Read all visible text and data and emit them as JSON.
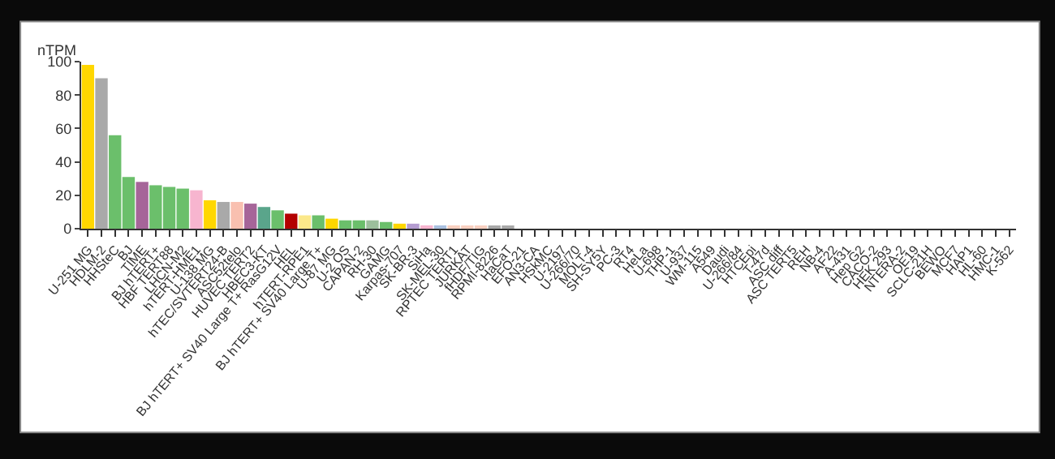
{
  "chart_data": {
    "type": "bar",
    "ylabel": "nTPM",
    "categories": [
      "U-251 MG",
      "HDLM-2",
      "HHSteC",
      "BJ",
      "TIME",
      "BJ hTERT+",
      "HBF TERT88",
      "LHCN-M2",
      "hTERT-HME1",
      "U-138 MG",
      "hTEC/SVTERT24-B",
      "ASC52telo",
      "HUVEC TERT2",
      "HBEC3-KT",
      "BJ hTERT+ SV40 Large T+ RasG12V",
      "HEL",
      "hTERT-RPE1",
      "BJ hTERT+ SV40 Large T+",
      "U-87 MG",
      "U-2 OS",
      "CAPAN-2",
      "RH-30",
      "GAMG",
      "Karpas-707",
      "SK-BR-3",
      "SiHa",
      "SK-MEL-30",
      "RPTEC TERT1",
      "JURKAT",
      "fHDF/TIG",
      "RPMI-8226",
      "HaCaT",
      "EFO-21",
      "AN3-CA",
      "HSkMC",
      "U-2197",
      "U-266/70",
      "MOLT-4",
      "SH-SY5Y",
      "PC-3",
      "RT4",
      "HeLa",
      "U-698",
      "THP-1",
      "U-937",
      "WM-115",
      "A549",
      "Daudi",
      "U-266/84",
      "HTCEpi",
      "T-47d",
      "ASC diff",
      "ASC TERT5",
      "REH",
      "NB-4",
      "AF22",
      "A-431",
      "Hep G2",
      "CACO-2",
      "HEK 293",
      "NTERA-2",
      "OE19",
      "SCLC-21H",
      "BEWO",
      "MCF7",
      "HAP1",
      "HL-60",
      "HMC-1",
      "K-562"
    ],
    "values": [
      98,
      90,
      56,
      31,
      28,
      26,
      25,
      24,
      23,
      17,
      16,
      16,
      15,
      13,
      11,
      9,
      8,
      8,
      6,
      5,
      5,
      5,
      4,
      3,
      3,
      2,
      2,
      2,
      1,
      1,
      1,
      1,
      0,
      0,
      0,
      0,
      0,
      0,
      0,
      0,
      0,
      0,
      0,
      0,
      0,
      0,
      0,
      0,
      0,
      0,
      0,
      0,
      0,
      0,
      0,
      0,
      0,
      0,
      0,
      0,
      0,
      0,
      0,
      0,
      0,
      0,
      0,
      0,
      0
    ],
    "colors": [
      "#ffd700",
      "#a9a9a9",
      "#6bbf6b",
      "#6bbf6b",
      "#a66599",
      "#6bbf6b",
      "#6bbf6b",
      "#6bbf6b",
      "#f7b5cf",
      "#ffd700",
      "#a9a9a9",
      "#f9c0b0",
      "#a66599",
      "#5aa58b",
      "#6bbf6b",
      "#b30000",
      "#fbe88a",
      "#6bbf6b",
      "#ffd700",
      "#6bbf6b",
      "#6bbf6b",
      "#9cbf9c",
      "#6bbf6b",
      "#ffd700",
      "#b49cd0",
      "#f7b5cf",
      "#a9c0e0",
      "#f9d0c0",
      "#f9d0c0",
      "#f9d0c0",
      "#a9a9a9",
      "#a9a9a9",
      "#a9a9a9",
      "#a9a9a9",
      "#a9a9a9",
      "#a9a9a9",
      "#a9a9a9",
      "#a9a9a9",
      "#a9a9a9",
      "#a9a9a9",
      "#a9a9a9",
      "#a9a9a9",
      "#a9a9a9",
      "#a9a9a9",
      "#a9a9a9",
      "#a9a9a9",
      "#a9a9a9",
      "#a9a9a9",
      "#a9a9a9",
      "#a9a9a9",
      "#a9a9a9",
      "#a9a9a9",
      "#a9a9a9",
      "#a9a9a9",
      "#a9a9a9",
      "#a9a9a9",
      "#a9a9a9",
      "#a9a9a9",
      "#a9a9a9",
      "#a9a9a9",
      "#a9a9a9",
      "#a9a9a9",
      "#a9a9a9",
      "#a9a9a9",
      "#a9a9a9",
      "#a9a9a9",
      "#a9a9a9",
      "#a9a9a9",
      "#a9a9a9"
    ],
    "ylim": [
      0,
      100
    ],
    "yticks": [
      0,
      20,
      40,
      60,
      80,
      100
    ]
  }
}
